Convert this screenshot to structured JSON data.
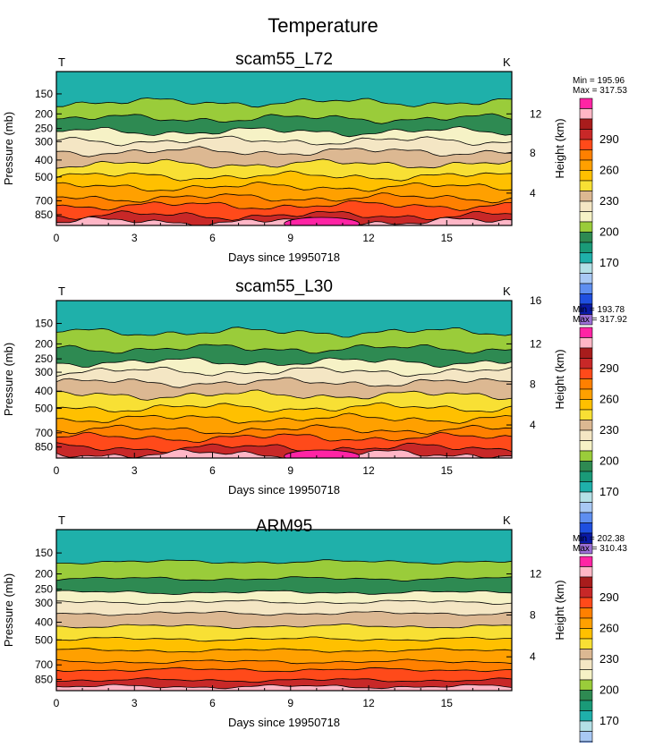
{
  "main_title": "Temperature",
  "colors": [
    "#9b6fd6",
    "#0a1aa8",
    "#1f4fe0",
    "#5e8ef0",
    "#a8c8f4",
    "#b4e0e6",
    "#1fb0aa",
    "#1a9a78",
    "#2e8a52",
    "#9acc3a",
    "#f6f2c6",
    "#f4e6c4",
    "#dcb892",
    "#f8e034",
    "#ffc000",
    "#ffa000",
    "#ff8000",
    "#ff4a1a",
    "#c82828",
    "#a81c1c",
    "#ffb6c6",
    "#ff24a4"
  ],
  "chart_data": [
    {
      "type": "contour",
      "title": "scam55_L72",
      "left_label": "T",
      "right_label": "K",
      "xlabel": "Days since 19950718",
      "ylabel": "Pressure (mb)",
      "y2label": "Height (km)",
      "x_ticks": [
        "0",
        "3",
        "6",
        "9",
        "12",
        "15"
      ],
      "x_range": [
        0,
        17.5
      ],
      "y_ticks": [
        "150",
        "200",
        "250",
        "300",
        "400",
        "500",
        "700",
        "850"
      ],
      "y2_ticks": [
        "4",
        "8",
        "12"
      ],
      "min_text": "Min = 195.96",
      "max_text": "Max = 317.53",
      "colorbar_labels": [
        "170",
        "200",
        "230",
        "260",
        "290"
      ]
    },
    {
      "type": "contour",
      "title": "scam55_L30",
      "left_label": "T",
      "right_label": "K",
      "xlabel": "Days since 19950718",
      "ylabel": "Pressure (mb)",
      "y2label": "Height (km)",
      "x_ticks": [
        "0",
        "3",
        "6",
        "9",
        "12",
        "15"
      ],
      "x_range": [
        0,
        17.5
      ],
      "y_ticks": [
        "150",
        "200",
        "250",
        "300",
        "400",
        "500",
        "700",
        "850"
      ],
      "y2_ticks": [
        "4",
        "8",
        "12",
        "16"
      ],
      "min_text": "Min = 193.78",
      "max_text": "Max = 317.92",
      "colorbar_labels": [
        "170",
        "200",
        "230",
        "260",
        "290"
      ]
    },
    {
      "type": "contour",
      "title": "ARM95",
      "left_label": "T",
      "right_label": "K",
      "xlabel": "Days since 19950718",
      "ylabel": "Pressure (mb)",
      "y2label": "Height (km)",
      "x_ticks": [
        "0",
        "3",
        "6",
        "9",
        "12",
        "15"
      ],
      "x_range": [
        0,
        17.5
      ],
      "y_ticks": [
        "150",
        "200",
        "250",
        "300",
        "400",
        "500",
        "700",
        "850"
      ],
      "y2_ticks": [
        "4",
        "8",
        "12"
      ],
      "min_text": "Min = 202.38",
      "max_text": "Max = 310.43",
      "colorbar_labels": [
        "170",
        "200",
        "230",
        "260",
        "290"
      ]
    }
  ]
}
